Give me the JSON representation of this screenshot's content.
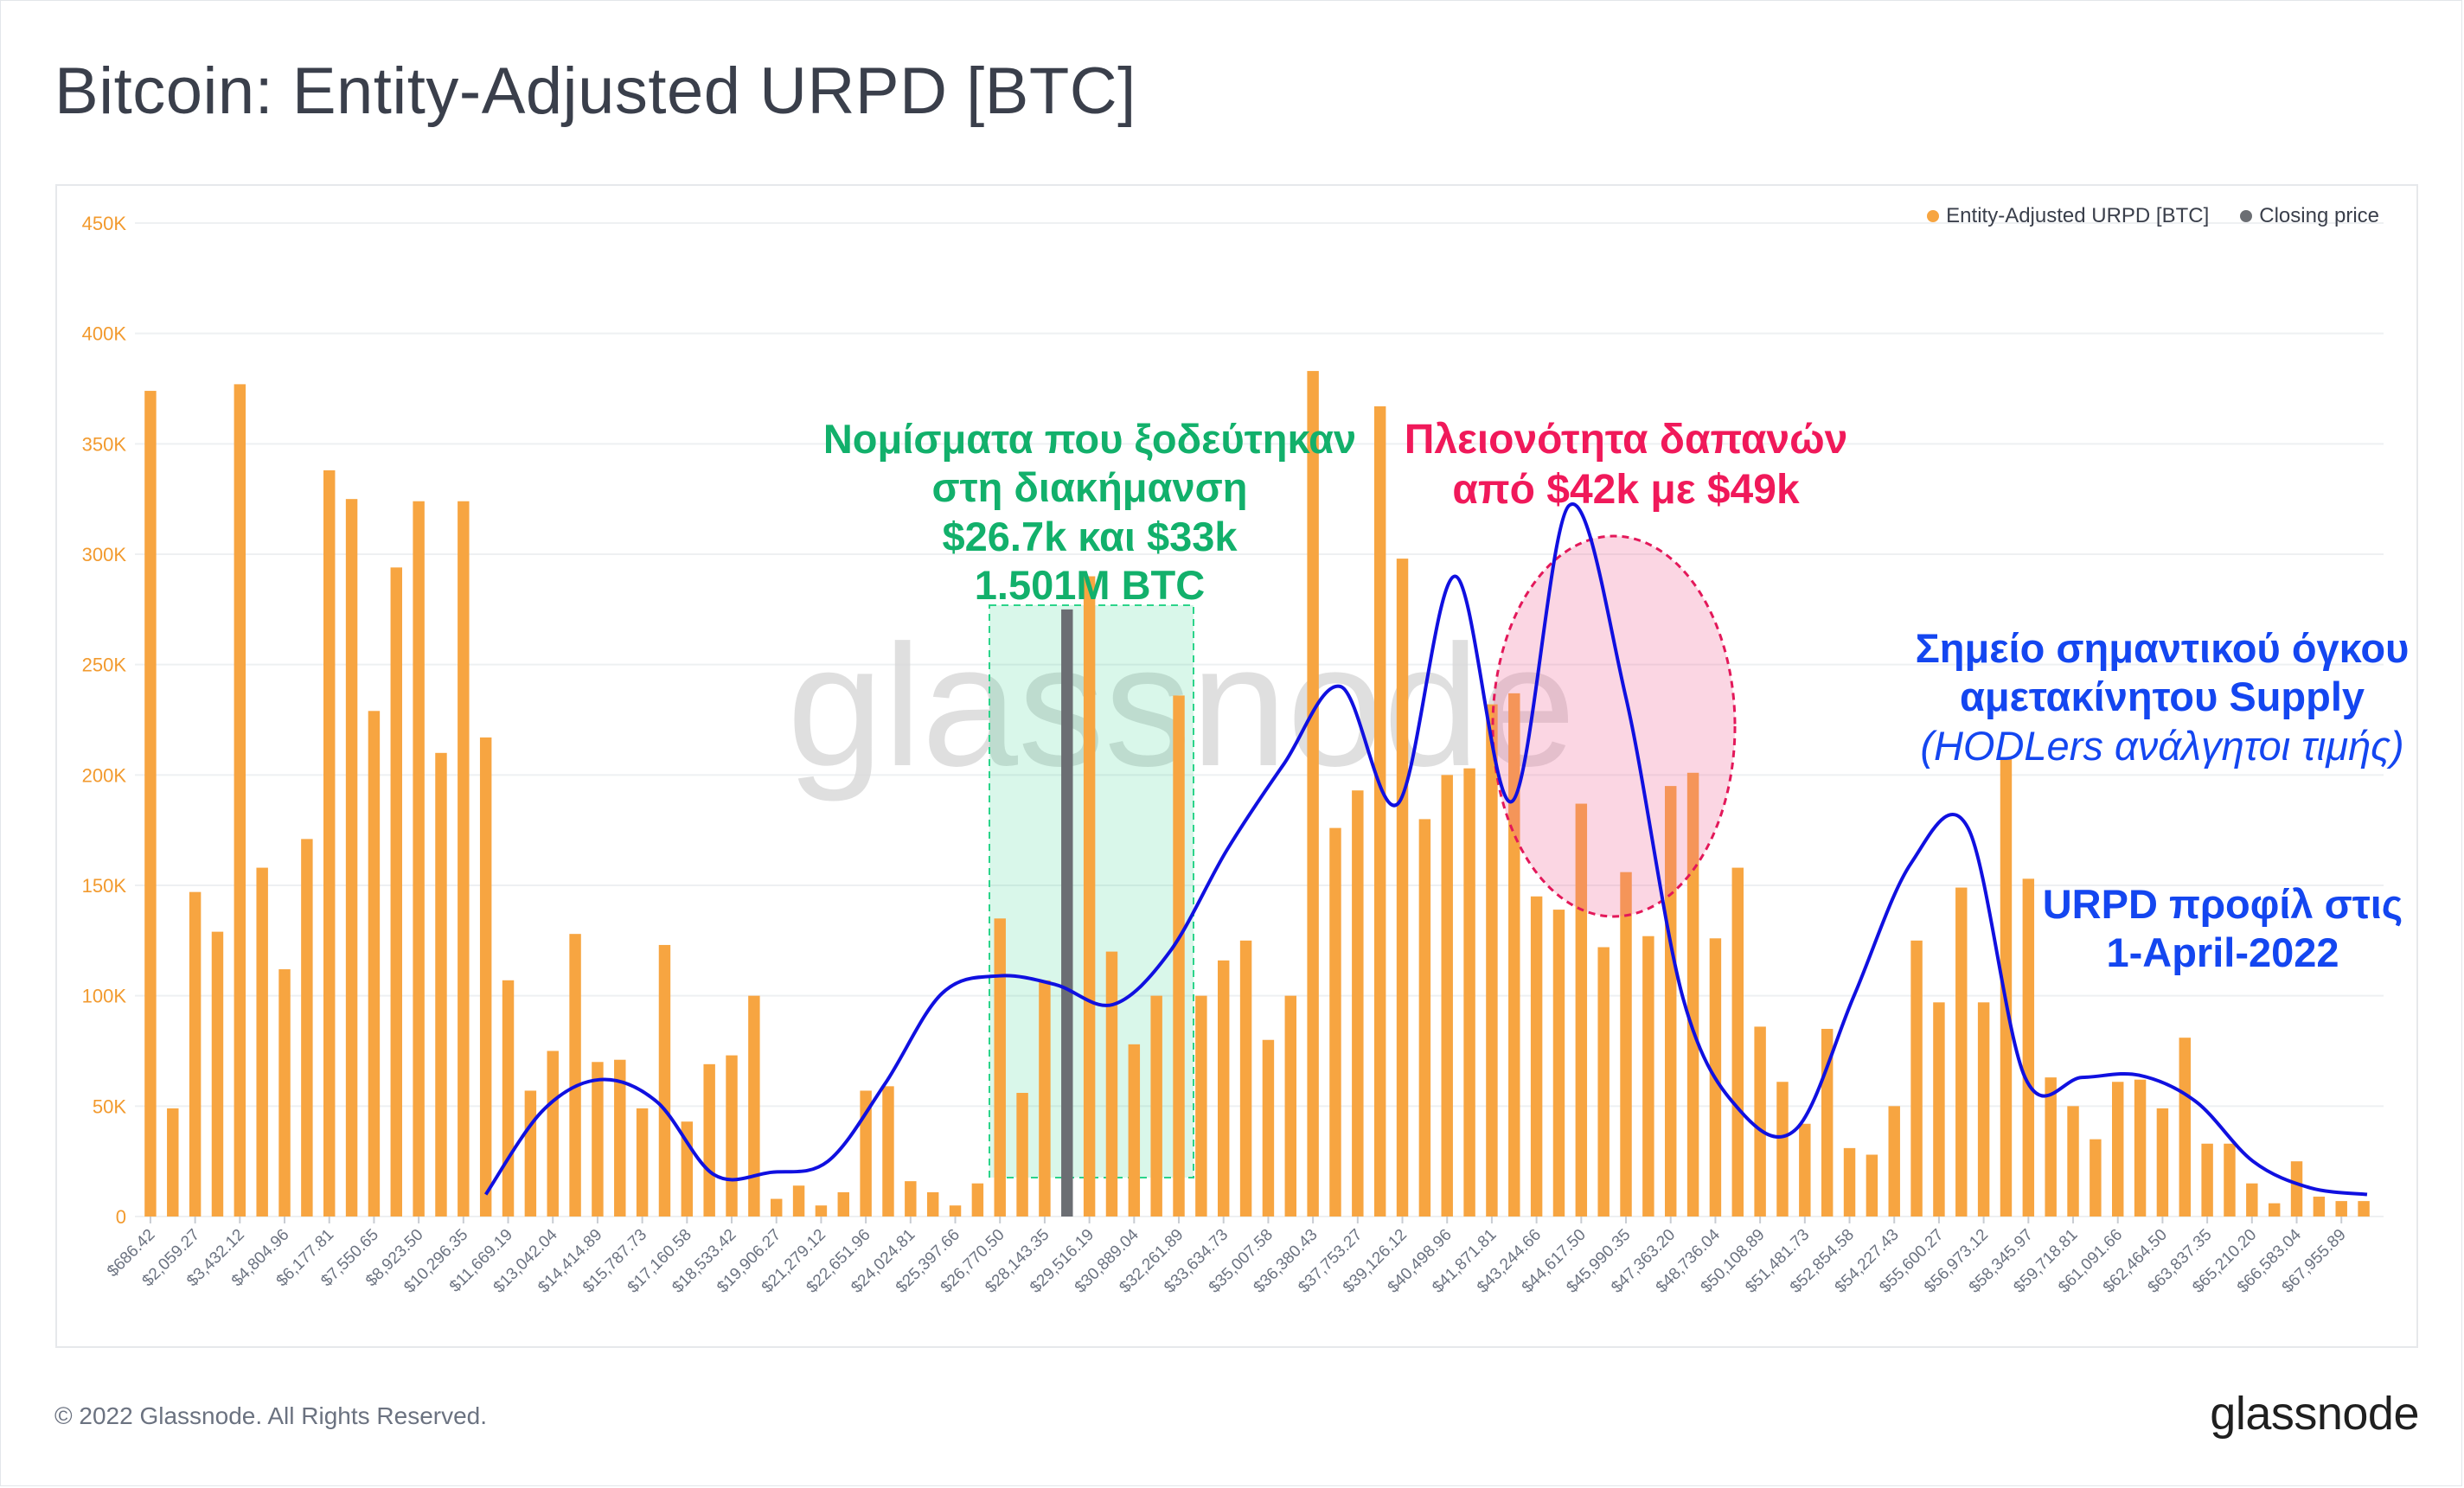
{
  "title": "Bitcoin: Entity-Adjusted URPD [BTC]",
  "footer": {
    "copyright": "© 2022 Glassnode. All Rights Reserved.",
    "logo": "glassnode"
  },
  "watermark": "glassnode",
  "legend": [
    {
      "label": "Entity-Adjusted URPD [BTC]",
      "color": "#f7a541"
    },
    {
      "label": "Closing price",
      "color": "#6b6e73"
    }
  ],
  "annotations": {
    "green": {
      "lines": [
        "Νομίσματα που ξοδεύτηκαν",
        "στη διακήμανση",
        "$26.7k και $33k",
        "1.501M BTC"
      ],
      "color": "#12b06b"
    },
    "red": {
      "lines": [
        "Πλειονότητα δαπανών",
        "από $42k με $49k"
      ],
      "color": "#f0195a"
    },
    "blue_supply": {
      "lines": [
        "Σημείο σημαντικού όγκου",
        "αμετακίνητου Supply"
      ],
      "italic": "(HODLers ανάλγητοι τιμής)",
      "color": "#1446f0"
    },
    "blue_profile": {
      "lines": [
        "URPD προφίλ στις",
        "1-April-2022"
      ],
      "color": "#1446f0"
    }
  },
  "colors": {
    "bar": "#f7a541",
    "closing_bar": "#6b6e73",
    "curve": "#1010e0",
    "green_box": "#2bd48a",
    "pink_ellipse": "#f06a9a",
    "axis_text": "#6b7280",
    "y_tick_text": "#f29a2e",
    "grid": "#eef0f2"
  },
  "chart_data": {
    "type": "bar",
    "title": "Bitcoin: Entity-Adjusted URPD [BTC]",
    "xlabel": "",
    "ylabel": "",
    "ylim": [
      0,
      450000
    ],
    "y_ticks": [
      "0",
      "50K",
      "100K",
      "150K",
      "200K",
      "250K",
      "300K",
      "350K",
      "400K",
      "450K"
    ],
    "x_tick_labels": [
      "$686.42",
      "$2,059.27",
      "$3,432.12",
      "$4,804.96",
      "$6,177.81",
      "$7,550.65",
      "$8,923.50",
      "$10,296.35",
      "$11,669.19",
      "$13,042.04",
      "$14,414.89",
      "$15,787.73",
      "$17,160.58",
      "$18,533.42",
      "$19,906.27",
      "$21,279.12",
      "$22,651.96",
      "$24,024.81",
      "$25,397.66",
      "$26,770.50",
      "$28,143.35",
      "$29,516.19",
      "$30,889.04",
      "$32,261.89",
      "$33,634.73",
      "$35,007.58",
      "$36,380.43",
      "$37,753.27",
      "$39,126.12",
      "$40,498.96",
      "$41,871.81",
      "$43,244.66",
      "$44,617.50",
      "$45,990.35",
      "$47,363.20",
      "$48,736.04",
      "$50,108.89",
      "$51,481.73",
      "$52,854.58",
      "$54,227.43",
      "$55,600.27",
      "$56,973.12",
      "$58,345.97",
      "$59,718.81",
      "$61,091.66",
      "$62,464.50",
      "$63,837.35",
      "$65,210.20",
      "$66,583.04",
      "$67,955.89"
    ],
    "bar_step": 686.42,
    "bar_start": 686.42,
    "grid": true,
    "legend_position": "top-right",
    "series": [
      {
        "name": "Entity-Adjusted URPD [BTC]",
        "values": [
          374000,
          49000,
          147000,
          129000,
          377000,
          158000,
          112000,
          171000,
          338000,
          325000,
          229000,
          294000,
          324000,
          210000,
          324000,
          217000,
          107000,
          57000,
          75000,
          128000,
          70000,
          71000,
          49000,
          123000,
          43000,
          69000,
          73000,
          100000,
          8000,
          14000,
          5000,
          11000,
          57000,
          59000,
          16000,
          11000,
          5000,
          15000,
          135000,
          56000,
          107000,
          275000,
          290000,
          120000,
          78000,
          100000,
          236000,
          100000,
          116000,
          125000,
          80000,
          100000,
          383000,
          176000,
          193000,
          367000,
          298000,
          180000,
          200000,
          203000,
          232000,
          237000,
          145000,
          139000,
          187000,
          122000,
          156000,
          127000,
          195000,
          201000,
          126000,
          158000,
          86000,
          61000,
          42000,
          85000,
          31000,
          28000,
          50000,
          125000,
          97000,
          149000,
          97000,
          208000,
          153000,
          63000,
          50000,
          35000,
          61000,
          62000,
          49000,
          81000,
          33000,
          33000,
          15000,
          6000,
          25000,
          9000,
          7000,
          7000
        ]
      }
    ],
    "closing_price_index": 41,
    "curve_profile": {
      "name": "URPD 1-April-2022",
      "values": [
        10000,
        48000,
        62000,
        52000,
        19000,
        20000,
        25000,
        60000,
        101000,
        109000,
        105000,
        96000,
        120000,
        166000,
        205000,
        240000,
        187000,
        290000,
        188000,
        322000,
        235000,
        99000,
        48000,
        40000,
        100000,
        160000,
        176000,
        63000,
        63000,
        64000,
        52000,
        25000,
        13000,
        10000
      ],
      "x_start_index": 15,
      "x_step": 2.55
    }
  }
}
